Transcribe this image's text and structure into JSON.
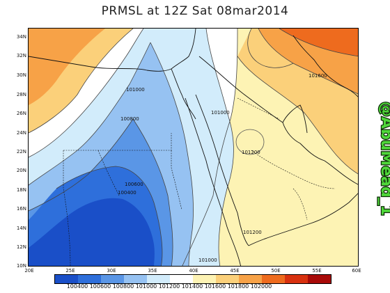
{
  "title": "PRMSL at 12Z Sat 08mar2014",
  "y_ticks": [
    "34N",
    "32N",
    "30N",
    "28N",
    "26N",
    "24N",
    "22N",
    "20N",
    "18N",
    "16N",
    "14N",
    "12N",
    "10N"
  ],
  "x_ticks": [
    "20E",
    "25E",
    "30E",
    "35E",
    "40E",
    "45E",
    "50E",
    "55E",
    "60E"
  ],
  "contour_labels": [
    "101000",
    "100800",
    "100600",
    "100400",
    "101000",
    "101200",
    "101200",
    "101000",
    "101600"
  ],
  "colorbar": {
    "colors": [
      "#1a4fc8",
      "#2e6fdb",
      "#5a96e6",
      "#96c2f2",
      "#d2ecfb",
      "#ffffff",
      "#fdf3b4",
      "#fbd07a",
      "#f7a247",
      "#ee6b1e",
      "#d8310f",
      "#a80a08"
    ],
    "labels": [
      "100400",
      "100600",
      "100800",
      "101000",
      "101200",
      "101400",
      "101600",
      "101800",
      "102000"
    ]
  },
  "watermark": "@AbuMead_1",
  "chart_data": {
    "type": "heatmap",
    "title": "PRMSL at 12Z Sat 08mar2014",
    "x_range": [
      "20E",
      "60E"
    ],
    "y_range": [
      "10N",
      "34N"
    ],
    "levels": [
      100400,
      100600,
      100800,
      101000,
      101200,
      101400,
      101600,
      101800,
      102000
    ],
    "contour_labels": [
      101000,
      100800,
      100600,
      100400,
      101000,
      101200,
      101200,
      101000,
      101600
    ]
  }
}
